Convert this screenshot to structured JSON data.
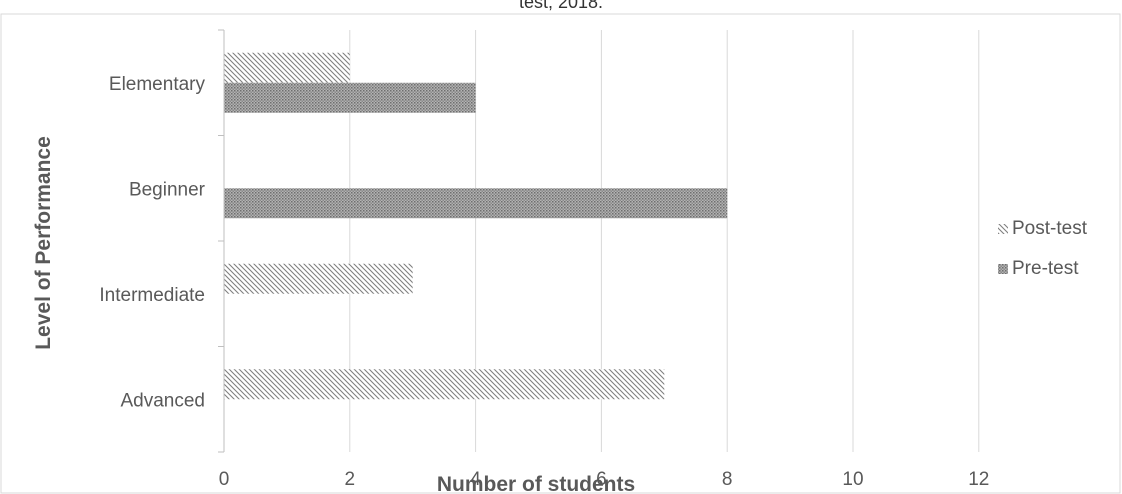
{
  "chart_data": {
    "type": "bar",
    "orientation": "horizontal",
    "title": "test, 2018.",
    "xlabel": "Number of students",
    "ylabel": "Level of Performance",
    "categories": [
      "Elementary",
      "Beginner",
      "Intermediate",
      "Advanced"
    ],
    "series": [
      {
        "name": "Post-test",
        "values": [
          2,
          0,
          3,
          7
        ]
      },
      {
        "name": "Pre-test",
        "values": [
          4,
          8,
          0,
          0
        ]
      }
    ],
    "xlim": [
      0,
      14
    ],
    "x_ticks": [
      "0",
      "2",
      "4",
      "6",
      "8",
      "10",
      "12"
    ],
    "grid": true,
    "legend_position": "right",
    "colors": {
      "bar_pattern": "#8c8c8c",
      "gridline": "#d9d9d9",
      "text": "#595959"
    }
  }
}
